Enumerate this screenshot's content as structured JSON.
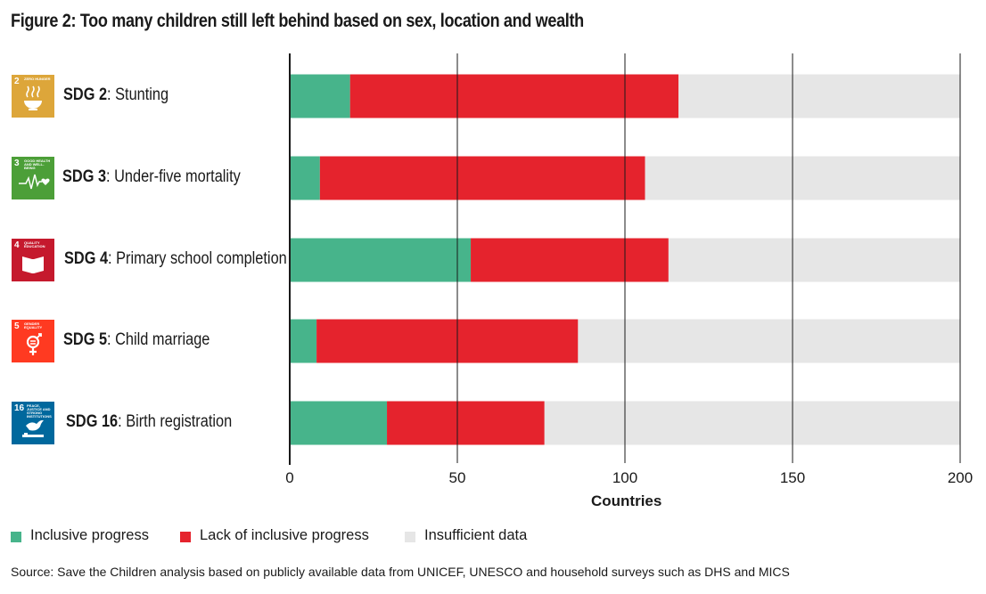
{
  "title": "Figure 2: Too many children still left behind based on sex, location and wealth",
  "source": "Source: Save the Children analysis based on publicly available data from UNICEF, UNESCO and household surveys such as DHS and MICS",
  "colors": {
    "inclusive": "#47b48b",
    "lack": "#e5232d",
    "insufficient": "#e6e6e6",
    "sdg2": "#dda63a",
    "sdg3": "#4c9f38",
    "sdg4": "#c5192d",
    "sdg5": "#ff3a21",
    "sdg16": "#00689d"
  },
  "rows": [
    {
      "goal": "SDG 2",
      "desc": ": Stunting",
      "badge_num": "2",
      "badge_text": "ZERO HUNGER",
      "icon": "bowl-icon",
      "color_key": "sdg2"
    },
    {
      "goal": "SDG 3",
      "desc": ": Under-five mortality",
      "badge_num": "3",
      "badge_text": "GOOD HEALTH AND WELL-BEING",
      "icon": "heartbeat-icon",
      "color_key": "sdg3"
    },
    {
      "goal": "SDG 4",
      "desc": ": Primary school completion",
      "badge_num": "4",
      "badge_text": "QUALITY EDUCATION",
      "icon": "book-icon",
      "color_key": "sdg4"
    },
    {
      "goal": "SDG 5",
      "desc": ": Child marriage",
      "badge_num": "5",
      "badge_text": "GENDER EQUALITY",
      "icon": "gender-icon",
      "color_key": "sdg5"
    },
    {
      "goal": "SDG 16",
      "desc": ": Birth registration",
      "badge_num": "16",
      "badge_text": "PEACE, JUSTICE AND STRONG INSTITUTIONS",
      "icon": "dove-icon",
      "color_key": "sdg16"
    }
  ],
  "chart_data": {
    "type": "bar",
    "orientation": "horizontal",
    "stacked": true,
    "categories": [
      "SDG 2: Stunting",
      "SDG 3: Under-five mortality",
      "SDG 4: Primary school completion",
      "SDG 5: Child marriage",
      "SDG 16: Birth registration"
    ],
    "series": [
      {
        "name": "Inclusive progress",
        "values": [
          18,
          9,
          54,
          8,
          29
        ]
      },
      {
        "name": "Lack of inclusive progress",
        "values": [
          98,
          97,
          59,
          78,
          47
        ]
      },
      {
        "name": "Insufficient data",
        "values": [
          84,
          94,
          87,
          114,
          124
        ]
      }
    ],
    "xlabel": "Countries",
    "ylabel": "",
    "xlim": [
      0,
      200
    ],
    "xticks": [
      0,
      50,
      100,
      150,
      200
    ],
    "grid": true,
    "legend": "bottom-left"
  }
}
